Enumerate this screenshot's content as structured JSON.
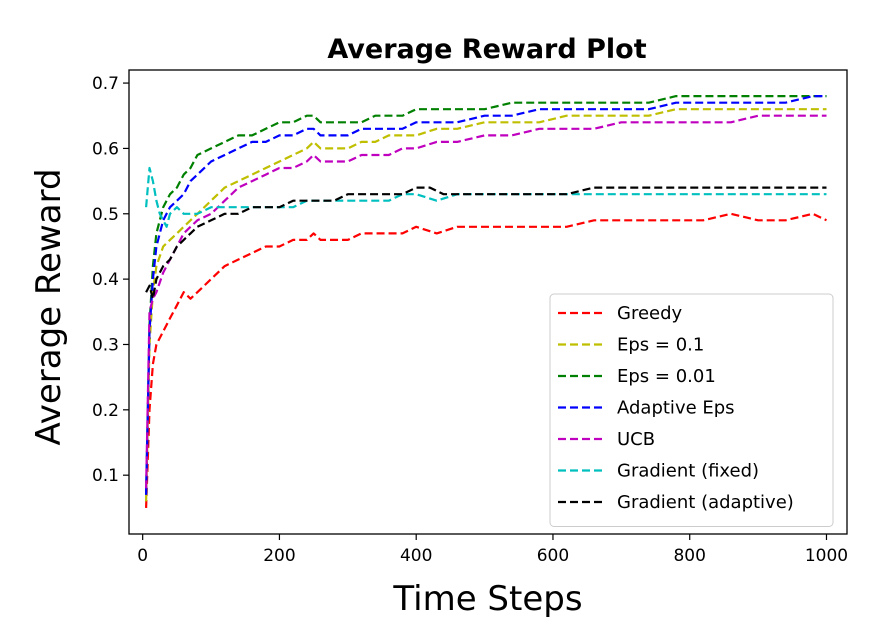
{
  "chart_data": {
    "type": "line",
    "title": "Average Reward Plot",
    "xlabel": "Time Steps",
    "ylabel": "Average Reward",
    "xlim": [
      -20,
      1030
    ],
    "ylim": [
      0.01,
      0.72
    ],
    "xticks": [
      "0",
      "200",
      "400",
      "600",
      "800",
      "1000"
    ],
    "yticks": [
      "0.1",
      "0.2",
      "0.3",
      "0.4",
      "0.5",
      "0.6",
      "0.7"
    ],
    "grid": false,
    "legend_position": "bottom-right",
    "series": [
      {
        "name": "Greedy",
        "color": "#ff0000",
        "x": [
          5,
          10,
          15,
          20,
          30,
          40,
          50,
          60,
          70,
          80,
          90,
          100,
          120,
          140,
          160,
          180,
          200,
          220,
          240,
          250,
          260,
          280,
          300,
          320,
          340,
          360,
          380,
          400,
          430,
          460,
          500,
          540,
          580,
          620,
          660,
          700,
          740,
          780,
          820,
          860,
          900,
          940,
          980,
          1000
        ],
        "y": [
          0.05,
          0.2,
          0.27,
          0.3,
          0.32,
          0.34,
          0.36,
          0.38,
          0.37,
          0.38,
          0.39,
          0.4,
          0.42,
          0.43,
          0.44,
          0.45,
          0.45,
          0.46,
          0.46,
          0.47,
          0.46,
          0.46,
          0.46,
          0.47,
          0.47,
          0.47,
          0.47,
          0.48,
          0.47,
          0.48,
          0.48,
          0.48,
          0.48,
          0.48,
          0.49,
          0.49,
          0.49,
          0.49,
          0.49,
          0.5,
          0.49,
          0.49,
          0.5,
          0.49
        ]
      },
      {
        "name": "Eps = 0.1",
        "color": "#bfbf00",
        "x": [
          5,
          10,
          15,
          20,
          30,
          40,
          50,
          60,
          70,
          80,
          100,
          120,
          140,
          160,
          180,
          200,
          220,
          240,
          250,
          260,
          280,
          300,
          320,
          340,
          360,
          380,
          400,
          430,
          460,
          500,
          540,
          580,
          620,
          660,
          700,
          740,
          780,
          820,
          860,
          900,
          940,
          980,
          1000
        ],
        "y": [
          0.06,
          0.3,
          0.38,
          0.42,
          0.45,
          0.46,
          0.47,
          0.48,
          0.49,
          0.5,
          0.52,
          0.54,
          0.55,
          0.56,
          0.57,
          0.58,
          0.59,
          0.6,
          0.61,
          0.6,
          0.6,
          0.6,
          0.61,
          0.61,
          0.62,
          0.62,
          0.62,
          0.63,
          0.63,
          0.64,
          0.64,
          0.64,
          0.65,
          0.65,
          0.65,
          0.65,
          0.66,
          0.66,
          0.66,
          0.66,
          0.66,
          0.66,
          0.66
        ]
      },
      {
        "name": "Eps = 0.01",
        "color": "#008000",
        "x": [
          5,
          10,
          15,
          20,
          30,
          40,
          50,
          60,
          70,
          80,
          100,
          120,
          140,
          160,
          180,
          200,
          220,
          240,
          250,
          260,
          280,
          300,
          320,
          340,
          360,
          380,
          400,
          430,
          460,
          500,
          540,
          580,
          620,
          660,
          700,
          740,
          780,
          820,
          860,
          900,
          940,
          980,
          1000
        ],
        "y": [
          0.07,
          0.33,
          0.42,
          0.47,
          0.51,
          0.53,
          0.54,
          0.56,
          0.57,
          0.59,
          0.6,
          0.61,
          0.62,
          0.62,
          0.63,
          0.64,
          0.64,
          0.65,
          0.65,
          0.64,
          0.64,
          0.64,
          0.64,
          0.65,
          0.65,
          0.65,
          0.66,
          0.66,
          0.66,
          0.66,
          0.67,
          0.67,
          0.67,
          0.67,
          0.67,
          0.67,
          0.68,
          0.68,
          0.68,
          0.68,
          0.68,
          0.68,
          0.68
        ]
      },
      {
        "name": "Adaptive Eps",
        "color": "#0000ff",
        "x": [
          5,
          10,
          15,
          20,
          30,
          40,
          50,
          60,
          70,
          80,
          100,
          120,
          140,
          160,
          180,
          200,
          220,
          240,
          250,
          260,
          280,
          300,
          320,
          340,
          360,
          380,
          400,
          430,
          460,
          500,
          540,
          580,
          620,
          660,
          700,
          740,
          780,
          820,
          860,
          900,
          940,
          980,
          1000
        ],
        "y": [
          0.07,
          0.32,
          0.4,
          0.45,
          0.49,
          0.51,
          0.52,
          0.53,
          0.55,
          0.56,
          0.58,
          0.59,
          0.6,
          0.61,
          0.61,
          0.62,
          0.62,
          0.63,
          0.63,
          0.62,
          0.62,
          0.62,
          0.63,
          0.63,
          0.63,
          0.63,
          0.64,
          0.64,
          0.64,
          0.65,
          0.65,
          0.66,
          0.66,
          0.66,
          0.66,
          0.66,
          0.67,
          0.67,
          0.67,
          0.67,
          0.67,
          0.68,
          0.68
        ]
      },
      {
        "name": "UCB",
        "color": "#bf00bf",
        "x": [
          5,
          10,
          15,
          20,
          30,
          40,
          50,
          60,
          70,
          80,
          100,
          120,
          140,
          160,
          180,
          200,
          220,
          240,
          250,
          260,
          280,
          300,
          320,
          340,
          360,
          380,
          400,
          430,
          460,
          500,
          540,
          580,
          620,
          660,
          700,
          740,
          780,
          820,
          860,
          900,
          940,
          980,
          1000
        ],
        "y": [
          0.08,
          0.35,
          0.37,
          0.38,
          0.41,
          0.43,
          0.45,
          0.47,
          0.48,
          0.49,
          0.5,
          0.52,
          0.54,
          0.55,
          0.56,
          0.57,
          0.57,
          0.58,
          0.59,
          0.58,
          0.58,
          0.58,
          0.59,
          0.59,
          0.59,
          0.6,
          0.6,
          0.61,
          0.61,
          0.62,
          0.62,
          0.63,
          0.63,
          0.63,
          0.64,
          0.64,
          0.64,
          0.64,
          0.64,
          0.65,
          0.65,
          0.65,
          0.65
        ]
      },
      {
        "name": "Gradient (fixed)",
        "color": "#00bfbf",
        "x": [
          5,
          10,
          15,
          20,
          25,
          30,
          35,
          40,
          50,
          60,
          70,
          80,
          100,
          120,
          140,
          160,
          180,
          200,
          220,
          240,
          260,
          280,
          300,
          320,
          340,
          360,
          380,
          400,
          430,
          460,
          500,
          540,
          580,
          620,
          660,
          700,
          740,
          780,
          820,
          860,
          900,
          940,
          980,
          1000
        ],
        "y": [
          0.51,
          0.57,
          0.55,
          0.52,
          0.5,
          0.49,
          0.48,
          0.5,
          0.51,
          0.5,
          0.5,
          0.5,
          0.51,
          0.51,
          0.51,
          0.51,
          0.51,
          0.51,
          0.51,
          0.52,
          0.52,
          0.52,
          0.52,
          0.52,
          0.52,
          0.52,
          0.53,
          0.53,
          0.52,
          0.53,
          0.53,
          0.53,
          0.53,
          0.53,
          0.53,
          0.53,
          0.53,
          0.53,
          0.53,
          0.53,
          0.53,
          0.53,
          0.53,
          0.53
        ]
      },
      {
        "name": "Gradient (adaptive)",
        "color": "#000000",
        "x": [
          5,
          10,
          15,
          20,
          25,
          30,
          40,
          50,
          60,
          70,
          80,
          100,
          120,
          140,
          160,
          180,
          200,
          220,
          240,
          260,
          280,
          300,
          320,
          340,
          360,
          380,
          400,
          420,
          440,
          460,
          500,
          540,
          580,
          620,
          660,
          700,
          740,
          780,
          820,
          860,
          900,
          940,
          980,
          1000
        ],
        "y": [
          0.38,
          0.39,
          0.37,
          0.4,
          0.41,
          0.42,
          0.43,
          0.45,
          0.46,
          0.47,
          0.48,
          0.49,
          0.5,
          0.5,
          0.51,
          0.51,
          0.51,
          0.52,
          0.52,
          0.52,
          0.52,
          0.53,
          0.53,
          0.53,
          0.53,
          0.53,
          0.54,
          0.54,
          0.53,
          0.53,
          0.53,
          0.53,
          0.53,
          0.53,
          0.54,
          0.54,
          0.54,
          0.54,
          0.54,
          0.54,
          0.54,
          0.54,
          0.54,
          0.54
        ]
      }
    ]
  }
}
